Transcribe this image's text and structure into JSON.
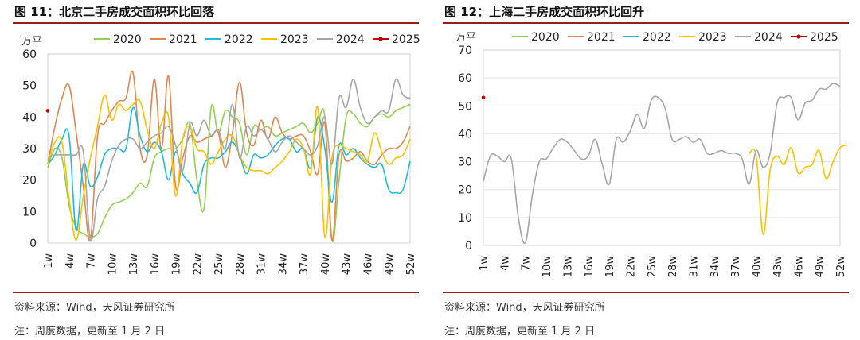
{
  "panels": [
    {
      "title": "图 11：北京二手房成交面积环比回落",
      "source": "资料来源：Wind，天风证券研究所",
      "note": "注：周度数据，更新至 1 月 2 日"
    },
    {
      "title": "图 12：上海二手房成交面积环比回升",
      "source": "资料来源：Wind，天风证券研究所",
      "note": "注：周度数据，更新至 1 月 2 日"
    }
  ],
  "chart_data": [
    {
      "type": "line",
      "title": "北京二手房成交面积环比回落",
      "ylabel": "万平",
      "ylim": [
        0,
        60
      ],
      "yticks": [
        0,
        10,
        20,
        30,
        40,
        50,
        60
      ],
      "xmax": 52,
      "xticks": [
        "1w",
        "4w",
        "7w",
        "10w",
        "13w",
        "16w",
        "19w",
        "22w",
        "25w",
        "28w",
        "31w",
        "34w",
        "37w",
        "40w",
        "43w",
        "46w",
        "49w",
        "52w"
      ],
      "grid": false,
      "legend_position": "top",
      "series": [
        {
          "name": "2020",
          "color": "#92d050",
          "values": [
            24,
            30,
            27,
            12,
            5,
            3,
            2,
            3,
            8,
            12,
            13,
            14,
            16,
            19,
            18,
            27,
            29,
            30,
            30,
            33,
            38,
            20,
            11,
            43,
            35,
            42,
            40,
            38,
            28,
            37,
            36,
            37,
            34,
            35,
            36,
            37,
            38,
            35,
            38,
            40,
            1,
            20,
            40,
            41,
            38,
            37,
            40,
            41,
            40,
            42,
            43,
            44
          ]
        },
        {
          "name": "2021",
          "color": "#e0864f",
          "values": [
            25,
            37,
            46,
            50,
            35,
            18,
            1,
            34,
            38,
            42,
            45,
            46,
            54,
            30,
            28,
            52,
            30,
            53,
            18,
            27,
            34,
            32,
            33,
            34,
            35,
            24,
            35,
            51,
            35,
            31,
            39,
            33,
            40,
            35,
            33,
            34,
            34,
            29,
            22,
            38,
            1,
            28,
            26,
            27,
            29,
            26,
            25,
            28,
            30,
            30,
            32,
            37
          ]
        },
        {
          "name": "2022",
          "color": "#1ebcdb",
          "values": [
            25,
            28,
            33,
            34,
            4,
            25,
            18,
            21,
            28,
            30,
            30,
            30,
            43,
            34,
            29,
            32,
            29,
            20,
            29,
            22,
            19,
            16,
            25,
            27,
            27,
            29,
            32,
            28,
            22,
            28,
            27,
            28,
            31,
            33,
            33,
            29,
            30,
            24,
            40,
            30,
            13,
            31,
            28,
            30,
            27,
            25,
            24,
            25,
            17,
            16,
            17,
            26
          ]
        },
        {
          "name": "2023",
          "color": "#ffc000",
          "values": [
            25,
            32,
            32,
            14,
            1,
            15,
            27,
            37,
            47,
            39,
            44,
            42,
            44,
            45,
            36,
            30,
            38,
            40,
            15,
            33,
            37,
            30,
            29,
            25,
            29,
            33,
            34,
            28,
            24,
            23,
            23,
            22,
            24,
            26,
            29,
            33,
            30,
            22,
            43,
            2,
            27,
            31,
            30,
            29,
            28,
            26,
            35,
            29,
            25,
            27,
            28,
            33
          ]
        },
        {
          "name": "2024",
          "color": "#a6a6a6",
          "values": [
            27,
            28,
            28,
            28,
            28,
            29,
            1,
            14,
            18,
            26,
            31,
            33,
            33,
            30,
            32,
            34,
            35,
            37,
            31,
            23,
            38,
            34,
            39,
            34,
            36,
            30,
            44,
            27,
            37,
            34,
            36,
            33,
            29,
            32,
            34,
            32,
            30,
            28,
            31,
            40,
            25,
            46,
            43,
            52,
            43,
            38,
            40,
            42,
            42,
            52,
            47,
            46
          ]
        },
        {
          "name": "2025",
          "color": "#c00000",
          "values": [
            42
          ]
        }
      ]
    },
    {
      "type": "line",
      "title": "上海二手房成交面积环比回升",
      "ylabel": "万平",
      "ylim": [
        0,
        70
      ],
      "yticks": [
        0,
        10,
        20,
        30,
        40,
        50,
        60,
        70
      ],
      "xmax": 52,
      "xticks": [
        "1w",
        "4w",
        "7w",
        "10w",
        "13w",
        "16w",
        "19w",
        "22w",
        "25w",
        "28w",
        "31w",
        "34w",
        "37w",
        "40w",
        "43w",
        "46w",
        "49w",
        "52w"
      ],
      "grid": true,
      "legend_position": "top",
      "series": [
        {
          "name": "2020",
          "color": "#92d050",
          "values": []
        },
        {
          "name": "2021",
          "color": "#e0864f",
          "values": []
        },
        {
          "name": "2022",
          "color": "#1ebcdb",
          "values": []
        },
        {
          "name": "2023",
          "color": "#ffc000",
          "values": [
            null,
            null,
            null,
            null,
            null,
            null,
            null,
            null,
            null,
            null,
            null,
            null,
            null,
            null,
            null,
            null,
            null,
            null,
            null,
            null,
            null,
            null,
            null,
            null,
            null,
            null,
            null,
            null,
            null,
            null,
            null,
            null,
            null,
            null,
            null,
            null,
            null,
            null,
            33,
            32,
            4,
            27,
            32,
            29,
            35,
            26,
            28,
            29,
            34,
            24,
            30,
            35,
            36
          ]
        },
        {
          "name": "2024",
          "color": "#a6a6a6",
          "values": [
            23,
            32,
            32,
            30,
            31,
            10,
            1,
            18,
            30,
            31,
            35,
            38,
            37,
            34,
            31,
            32,
            38,
            29,
            22,
            38,
            37,
            41,
            47,
            42,
            52,
            53,
            49,
            38,
            38,
            39,
            37,
            38,
            33,
            33,
            34,
            33,
            33,
            31,
            22,
            34,
            28,
            33,
            51,
            53,
            53,
            45,
            51,
            52,
            56,
            56,
            58,
            57
          ]
        },
        {
          "name": "2025",
          "color": "#c00000",
          "values": [
            53
          ]
        }
      ]
    }
  ]
}
